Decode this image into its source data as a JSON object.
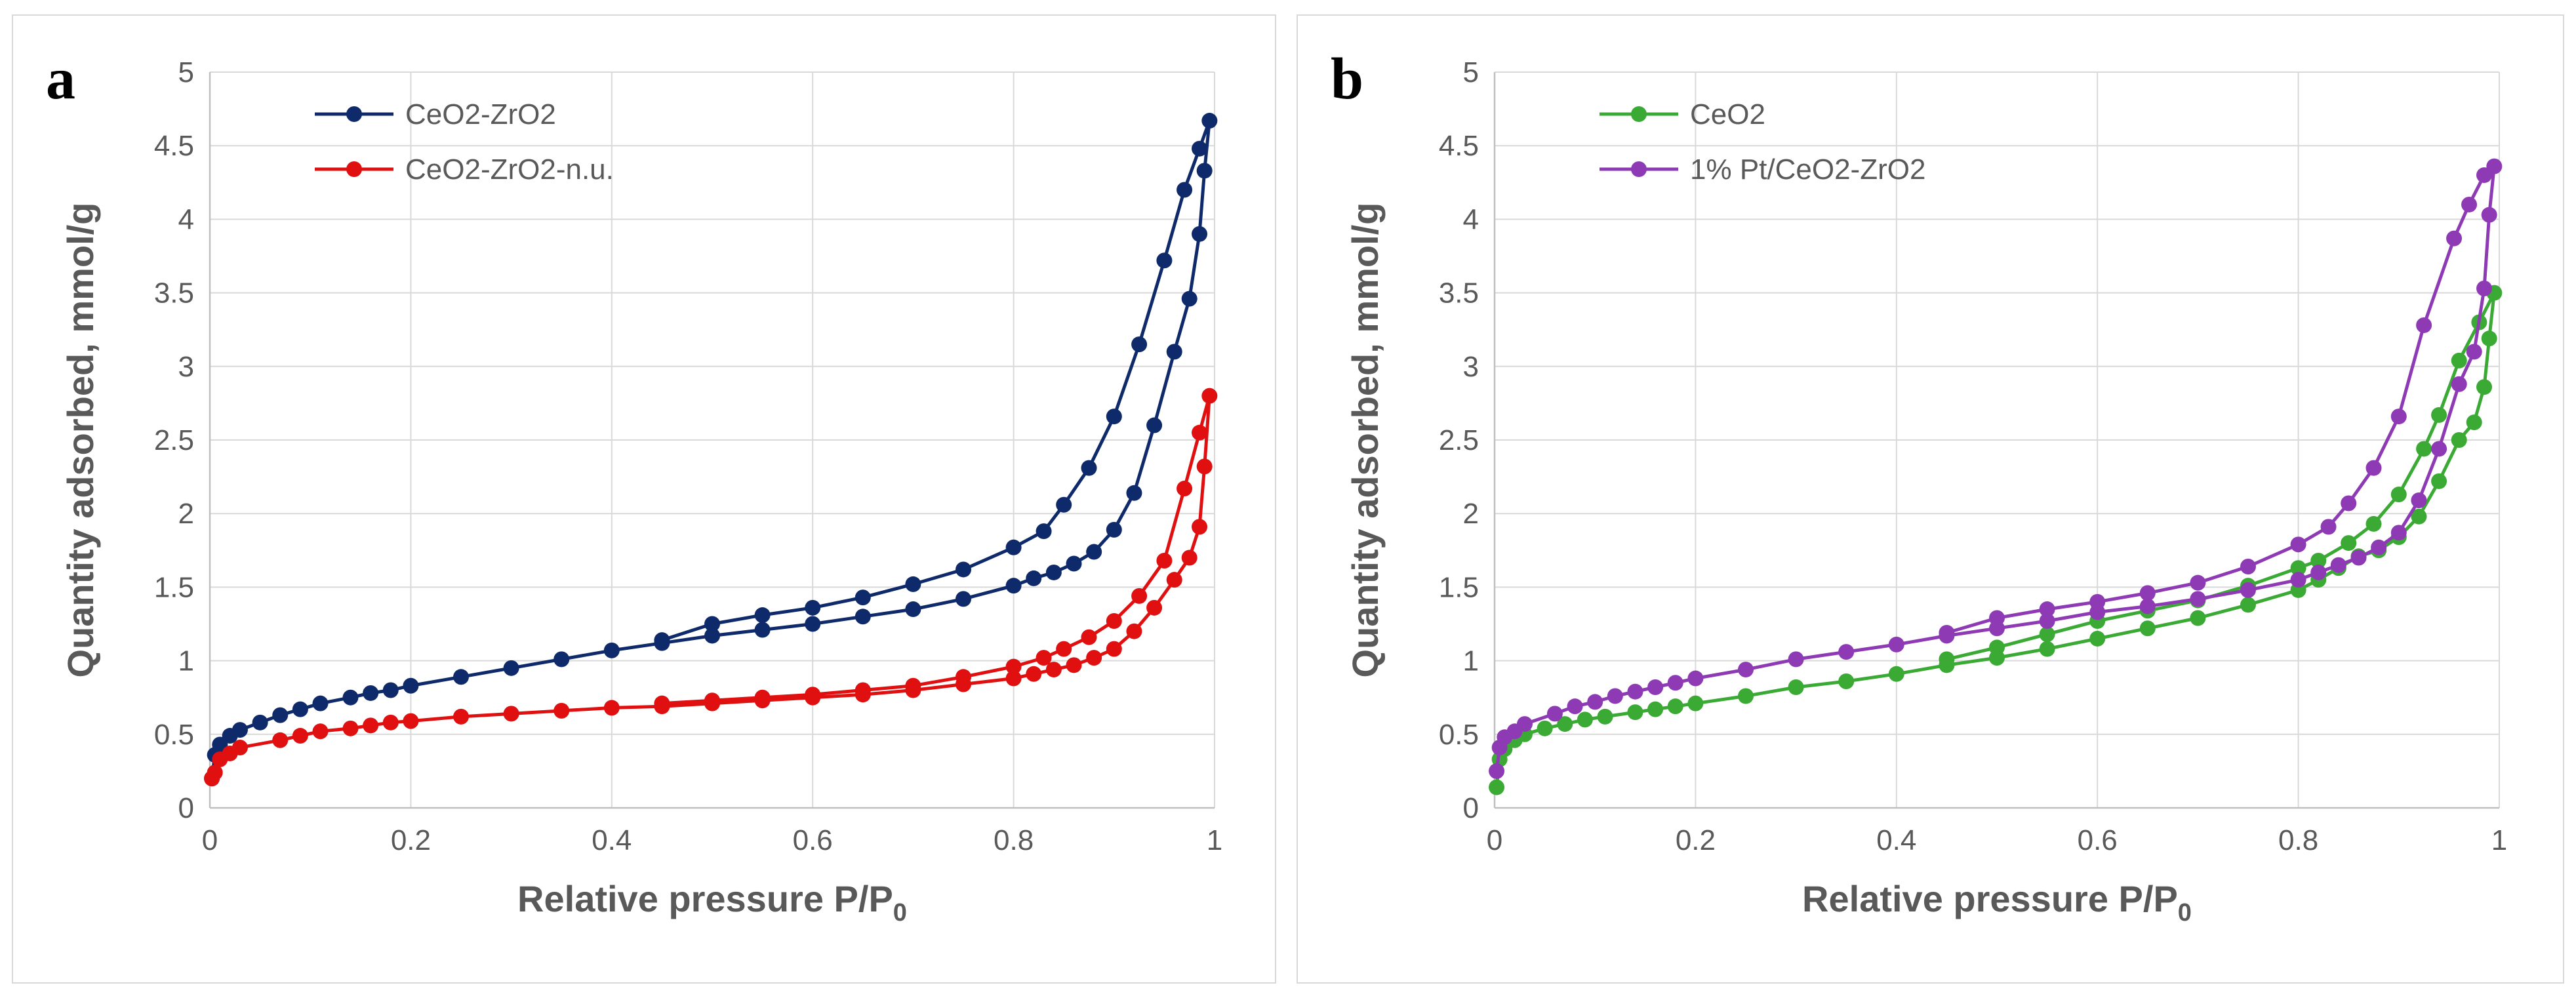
{
  "chart_data": [
    {
      "type": "line",
      "panel_label": "a",
      "xlabel": "Relative pressure P/P",
      "xlabel_sub": "0",
      "ylabel": "Quantity adsorbed, mmol/g",
      "xlim": [
        0,
        1
      ],
      "ylim": [
        0,
        5
      ],
      "xticks": [
        "0",
        "0.2",
        "0.4",
        "0.6",
        "0.8",
        "1"
      ],
      "yticks": [
        "0",
        "0.5",
        "1",
        "1.5",
        "2",
        "2.5",
        "3",
        "3.5",
        "4",
        "4.5",
        "5"
      ],
      "legend_position": "top-left",
      "series": [
        {
          "name": "CeO2-ZrO2",
          "color": "#0f2a6b",
          "points": [
            [
              0.002,
              0.2
            ],
            [
              0.005,
              0.36
            ],
            [
              0.01,
              0.43
            ],
            [
              0.02,
              0.49
            ],
            [
              0.03,
              0.53
            ],
            [
              0.05,
              0.58
            ],
            [
              0.07,
              0.63
            ],
            [
              0.09,
              0.67
            ],
            [
              0.11,
              0.71
            ],
            [
              0.14,
              0.75
            ],
            [
              0.16,
              0.78
            ],
            [
              0.18,
              0.8
            ],
            [
              0.2,
              0.83
            ],
            [
              0.25,
              0.89
            ],
            [
              0.3,
              0.95
            ],
            [
              0.35,
              1.01
            ],
            [
              0.4,
              1.07
            ],
            [
              0.45,
              1.12
            ],
            [
              0.5,
              1.17
            ],
            [
              0.55,
              1.21
            ],
            [
              0.6,
              1.25
            ],
            [
              0.65,
              1.3
            ],
            [
              0.7,
              1.35
            ],
            [
              0.75,
              1.42
            ],
            [
              0.8,
              1.51
            ],
            [
              0.82,
              1.56
            ],
            [
              0.84,
              1.6
            ],
            [
              0.86,
              1.66
            ],
            [
              0.88,
              1.74
            ],
            [
              0.9,
              1.89
            ],
            [
              0.92,
              2.14
            ],
            [
              0.94,
              2.6
            ],
            [
              0.96,
              3.1
            ],
            [
              0.975,
              3.46
            ],
            [
              0.985,
              3.9
            ],
            [
              0.99,
              4.33
            ],
            [
              0.995,
              4.67
            ],
            [
              0.985,
              4.48
            ],
            [
              0.97,
              4.2
            ],
            [
              0.95,
              3.72
            ],
            [
              0.925,
              3.15
            ],
            [
              0.9,
              2.66
            ],
            [
              0.875,
              2.31
            ],
            [
              0.85,
              2.06
            ],
            [
              0.83,
              1.88
            ],
            [
              0.8,
              1.77
            ],
            [
              0.75,
              1.62
            ],
            [
              0.7,
              1.52
            ],
            [
              0.65,
              1.43
            ],
            [
              0.6,
              1.36
            ],
            [
              0.55,
              1.31
            ],
            [
              0.5,
              1.25
            ],
            [
              0.45,
              1.14
            ]
          ]
        },
        {
          "name": "CeO2-ZrO2-n.u.",
          "color": "#e01010",
          "points": [
            [
              0.002,
              0.2
            ],
            [
              0.005,
              0.24
            ],
            [
              0.01,
              0.33
            ],
            [
              0.02,
              0.37
            ],
            [
              0.03,
              0.41
            ],
            [
              0.07,
              0.46
            ],
            [
              0.09,
              0.49
            ],
            [
              0.11,
              0.52
            ],
            [
              0.14,
              0.54
            ],
            [
              0.16,
              0.56
            ],
            [
              0.18,
              0.58
            ],
            [
              0.2,
              0.59
            ],
            [
              0.25,
              0.62
            ],
            [
              0.3,
              0.64
            ],
            [
              0.35,
              0.66
            ],
            [
              0.4,
              0.68
            ],
            [
              0.45,
              0.69
            ],
            [
              0.5,
              0.71
            ],
            [
              0.55,
              0.73
            ],
            [
              0.6,
              0.75
            ],
            [
              0.65,
              0.77
            ],
            [
              0.7,
              0.8
            ],
            [
              0.75,
              0.84
            ],
            [
              0.8,
              0.88
            ],
            [
              0.82,
              0.91
            ],
            [
              0.84,
              0.94
            ],
            [
              0.86,
              0.97
            ],
            [
              0.88,
              1.02
            ],
            [
              0.9,
              1.08
            ],
            [
              0.92,
              1.2
            ],
            [
              0.94,
              1.36
            ],
            [
              0.96,
              1.55
            ],
            [
              0.975,
              1.7
            ],
            [
              0.985,
              1.91
            ],
            [
              0.99,
              2.32
            ],
            [
              0.995,
              2.8
            ],
            [
              0.985,
              2.55
            ],
            [
              0.97,
              2.17
            ],
            [
              0.95,
              1.68
            ],
            [
              0.925,
              1.44
            ],
            [
              0.9,
              1.27
            ],
            [
              0.875,
              1.16
            ],
            [
              0.85,
              1.08
            ],
            [
              0.83,
              1.02
            ],
            [
              0.8,
              0.96
            ],
            [
              0.75,
              0.89
            ],
            [
              0.7,
              0.83
            ],
            [
              0.65,
              0.8
            ],
            [
              0.6,
              0.77
            ],
            [
              0.55,
              0.75
            ],
            [
              0.5,
              0.73
            ],
            [
              0.45,
              0.71
            ]
          ]
        }
      ]
    },
    {
      "type": "line",
      "panel_label": "b",
      "xlabel": "Relative pressure P/P",
      "xlabel_sub": "0",
      "ylabel": "Quantity adsorbed, mmol/g",
      "xlim": [
        0,
        1
      ],
      "ylim": [
        0,
        5
      ],
      "xticks": [
        "0",
        "0.2",
        "0.4",
        "0.6",
        "0.8",
        "1"
      ],
      "yticks": [
        "0",
        "0.5",
        "1",
        "1.5",
        "2",
        "2.5",
        "3",
        "3.5",
        "4",
        "4.5",
        "5"
      ],
      "legend_position": "top-left",
      "series": [
        {
          "name": "CeO2",
          "color": "#3aaa35",
          "points": [
            [
              0.002,
              0.14
            ],
            [
              0.005,
              0.33
            ],
            [
              0.01,
              0.4
            ],
            [
              0.02,
              0.46
            ],
            [
              0.03,
              0.5
            ],
            [
              0.05,
              0.54
            ],
            [
              0.07,
              0.57
            ],
            [
              0.09,
              0.6
            ],
            [
              0.11,
              0.62
            ],
            [
              0.14,
              0.65
            ],
            [
              0.16,
              0.67
            ],
            [
              0.18,
              0.69
            ],
            [
              0.2,
              0.71
            ],
            [
              0.25,
              0.76
            ],
            [
              0.3,
              0.82
            ],
            [
              0.35,
              0.86
            ],
            [
              0.4,
              0.91
            ],
            [
              0.45,
              0.97
            ],
            [
              0.5,
              1.02
            ],
            [
              0.55,
              1.08
            ],
            [
              0.6,
              1.15
            ],
            [
              0.65,
              1.22
            ],
            [
              0.7,
              1.29
            ],
            [
              0.75,
              1.38
            ],
            [
              0.8,
              1.48
            ],
            [
              0.82,
              1.55
            ],
            [
              0.84,
              1.63
            ],
            [
              0.86,
              1.71
            ],
            [
              0.88,
              1.75
            ],
            [
              0.9,
              1.84
            ],
            [
              0.92,
              1.98
            ],
            [
              0.94,
              2.22
            ],
            [
              0.96,
              2.5
            ],
            [
              0.975,
              2.62
            ],
            [
              0.985,
              2.86
            ],
            [
              0.99,
              3.19
            ],
            [
              0.995,
              3.5
            ],
            [
              0.98,
              3.3
            ],
            [
              0.96,
              3.04
            ],
            [
              0.94,
              2.67
            ],
            [
              0.925,
              2.44
            ],
            [
              0.9,
              2.13
            ],
            [
              0.875,
              1.93
            ],
            [
              0.85,
              1.8
            ],
            [
              0.82,
              1.68
            ],
            [
              0.8,
              1.63
            ],
            [
              0.75,
              1.51
            ],
            [
              0.7,
              1.41
            ],
            [
              0.65,
              1.34
            ],
            [
              0.6,
              1.27
            ],
            [
              0.55,
              1.18
            ],
            [
              0.5,
              1.09
            ],
            [
              0.45,
              1.01
            ]
          ]
        },
        {
          "name": "1% Pt/CeO2-ZrO2",
          "color": "#8e3ab5",
          "points": [
            [
              0.002,
              0.25
            ],
            [
              0.005,
              0.41
            ],
            [
              0.01,
              0.48
            ],
            [
              0.02,
              0.52
            ],
            [
              0.03,
              0.57
            ],
            [
              0.06,
              0.64
            ],
            [
              0.08,
              0.69
            ],
            [
              0.1,
              0.72
            ],
            [
              0.12,
              0.76
            ],
            [
              0.14,
              0.79
            ],
            [
              0.16,
              0.82
            ],
            [
              0.18,
              0.85
            ],
            [
              0.2,
              0.88
            ],
            [
              0.25,
              0.94
            ],
            [
              0.3,
              1.01
            ],
            [
              0.35,
              1.06
            ],
            [
              0.4,
              1.11
            ],
            [
              0.45,
              1.17
            ],
            [
              0.5,
              1.22
            ],
            [
              0.55,
              1.27
            ],
            [
              0.6,
              1.33
            ],
            [
              0.65,
              1.37
            ],
            [
              0.7,
              1.42
            ],
            [
              0.75,
              1.48
            ],
            [
              0.8,
              1.55
            ],
            [
              0.82,
              1.6
            ],
            [
              0.84,
              1.65
            ],
            [
              0.86,
              1.7
            ],
            [
              0.88,
              1.77
            ],
            [
              0.9,
              1.87
            ],
            [
              0.92,
              2.09
            ],
            [
              0.94,
              2.44
            ],
            [
              0.96,
              2.88
            ],
            [
              0.975,
              3.1
            ],
            [
              0.985,
              3.53
            ],
            [
              0.99,
              4.03
            ],
            [
              0.995,
              4.36
            ],
            [
              0.985,
              4.3
            ],
            [
              0.97,
              4.1
            ],
            [
              0.955,
              3.87
            ],
            [
              0.925,
              3.28
            ],
            [
              0.9,
              2.66
            ],
            [
              0.875,
              2.31
            ],
            [
              0.85,
              2.07
            ],
            [
              0.83,
              1.91
            ],
            [
              0.8,
              1.79
            ],
            [
              0.75,
              1.64
            ],
            [
              0.7,
              1.53
            ],
            [
              0.65,
              1.46
            ],
            [
              0.6,
              1.4
            ],
            [
              0.55,
              1.35
            ],
            [
              0.5,
              1.29
            ],
            [
              0.45,
              1.19
            ]
          ]
        }
      ]
    }
  ]
}
